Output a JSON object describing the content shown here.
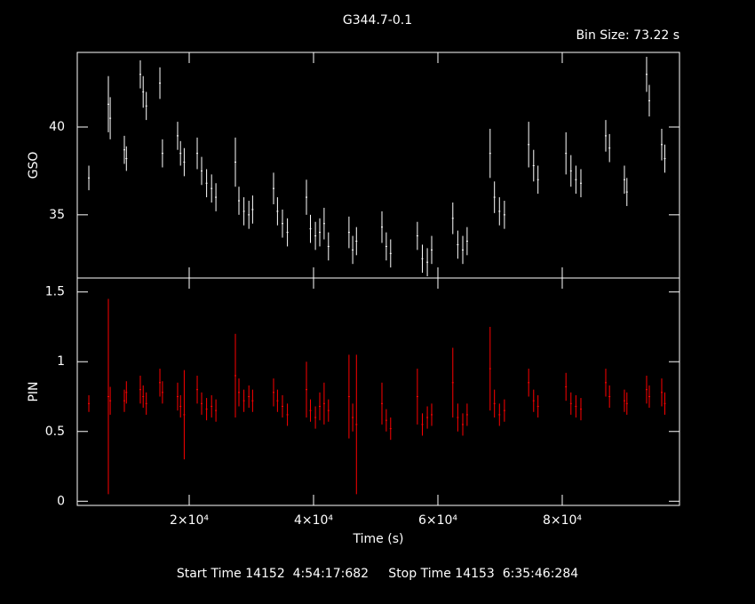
{
  "chart_data": [
    {
      "type": "errorbar",
      "title": "G344.7-0.1",
      "annotation": "Bin Size: 73.22 s",
      "ylabel": "GSO",
      "color": "#ffffff",
      "x": [
        3860,
        7000,
        7300,
        9570,
        9900,
        12140,
        12600,
        13100,
        15290,
        15700,
        18140,
        18600,
        19200,
        21290,
        22000,
        22800,
        23600,
        24300,
        27430,
        28000,
        28800,
        29600,
        30200,
        33570,
        34200,
        35000,
        35800,
        38860,
        39500,
        40300,
        41000,
        41700,
        42400,
        45700,
        46300,
        46900,
        51000,
        51700,
        52400,
        56700,
        57500,
        58300,
        59000,
        62400,
        63200,
        64000,
        64700,
        68400,
        69100,
        69900,
        70700,
        74600,
        75400,
        76100,
        80600,
        81400,
        82200,
        83000,
        87000,
        87600,
        90000,
        90400,
        93570,
        94000,
        96000,
        96500
      ],
      "values": [
        37.1,
        41.3,
        40.5,
        38.7,
        38.2,
        43.0,
        42.0,
        41.2,
        42.5,
        38.5,
        39.5,
        38.5,
        38.0,
        38.5,
        37.5,
        36.8,
        36.5,
        36.0,
        38.0,
        35.8,
        35.2,
        35.0,
        35.3,
        36.5,
        35.2,
        34.5,
        34.0,
        36.0,
        34.2,
        33.8,
        34.0,
        34.5,
        33.2,
        34.0,
        33.0,
        33.5,
        34.3,
        33.2,
        32.8,
        33.8,
        32.5,
        32.3,
        33.0,
        34.8,
        33.3,
        33.0,
        33.5,
        38.5,
        36.0,
        35.2,
        35.0,
        39.0,
        37.8,
        37.0,
        38.5,
        37.5,
        37.0,
        36.8,
        39.5,
        38.8,
        37.0,
        36.3,
        43.0,
        41.5,
        39.0,
        38.2
      ],
      "errors": [
        0.7,
        1.6,
        1.2,
        0.8,
        0.7,
        0.8,
        0.9,
        0.8,
        0.9,
        0.8,
        0.8,
        0.7,
        0.8,
        0.9,
        0.8,
        0.8,
        0.8,
        0.8,
        1.4,
        0.8,
        0.8,
        0.8,
        0.8,
        0.9,
        0.8,
        0.8,
        0.8,
        1.0,
        0.8,
        0.8,
        0.8,
        0.9,
        0.8,
        0.9,
        0.8,
        0.8,
        0.9,
        0.8,
        0.8,
        0.8,
        0.8,
        0.8,
        0.8,
        0.9,
        0.8,
        0.8,
        0.8,
        1.4,
        0.9,
        0.8,
        0.8,
        1.3,
        0.9,
        0.8,
        1.2,
        0.9,
        0.8,
        0.8,
        0.9,
        0.8,
        0.8,
        0.8,
        1.0,
        0.9,
        0.9,
        0.8
      ],
      "xlim": [
        2000,
        98860
      ],
      "ylim": [
        31.4,
        44.25
      ],
      "yticks": [
        35,
        40
      ]
    },
    {
      "type": "errorbar",
      "ylabel": "PIN",
      "xlabel": "Time (s)",
      "color": "#ff0000",
      "x": [
        3860,
        7000,
        7300,
        9570,
        9900,
        12140,
        12600,
        13100,
        15290,
        15700,
        18140,
        18600,
        19200,
        21290,
        22000,
        22800,
        23600,
        24300,
        27430,
        28000,
        28800,
        29600,
        30200,
        33570,
        34200,
        35000,
        35800,
        38860,
        39500,
        40300,
        41000,
        41700,
        42400,
        45700,
        46300,
        46900,
        51000,
        51700,
        52400,
        56700,
        57500,
        58300,
        59000,
        62400,
        63200,
        64000,
        64700,
        68400,
        69100,
        69900,
        70700,
        74600,
        75400,
        76100,
        80600,
        81400,
        82200,
        83000,
        87000,
        87600,
        90000,
        90400,
        93570,
        94000,
        96000,
        96500
      ],
      "values": [
        0.7,
        0.75,
        0.72,
        0.72,
        0.78,
        0.8,
        0.75,
        0.7,
        0.85,
        0.78,
        0.75,
        0.68,
        0.62,
        0.8,
        0.7,
        0.66,
        0.68,
        0.65,
        0.9,
        0.78,
        0.72,
        0.75,
        0.72,
        0.78,
        0.72,
        0.68,
        0.62,
        0.8,
        0.65,
        0.6,
        0.68,
        0.7,
        0.65,
        0.75,
        0.6,
        0.55,
        0.7,
        0.58,
        0.52,
        0.75,
        0.55,
        0.6,
        0.62,
        0.85,
        0.6,
        0.55,
        0.62,
        0.95,
        0.7,
        0.62,
        0.65,
        0.85,
        0.72,
        0.68,
        0.82,
        0.7,
        0.68,
        0.66,
        0.85,
        0.75,
        0.72,
        0.7,
        0.8,
        0.75,
        0.78,
        0.7
      ],
      "errors": [
        0.06,
        0.7,
        0.1,
        0.08,
        0.08,
        0.1,
        0.08,
        0.08,
        0.1,
        0.08,
        0.1,
        0.08,
        0.32,
        0.1,
        0.08,
        0.08,
        0.08,
        0.08,
        0.3,
        0.1,
        0.08,
        0.08,
        0.08,
        0.1,
        0.08,
        0.08,
        0.08,
        0.2,
        0.08,
        0.08,
        0.1,
        0.15,
        0.08,
        0.3,
        0.1,
        0.5,
        0.15,
        0.08,
        0.08,
        0.2,
        0.08,
        0.08,
        0.08,
        0.25,
        0.1,
        0.08,
        0.08,
        0.3,
        0.1,
        0.08,
        0.08,
        0.1,
        0.08,
        0.08,
        0.1,
        0.08,
        0.08,
        0.08,
        0.1,
        0.08,
        0.08,
        0.08,
        0.1,
        0.08,
        0.1,
        0.08
      ],
      "xlim": [
        2000,
        98860
      ],
      "ylim": [
        -0.03,
        1.6
      ],
      "yticks": [
        0,
        0.5,
        1,
        1.5
      ],
      "xticks": [
        {
          "value": 20000,
          "label": "2×10⁴"
        },
        {
          "value": 40000,
          "label": "4×10⁴"
        },
        {
          "value": 60000,
          "label": "6×10⁴"
        },
        {
          "value": 80000,
          "label": "8×10⁴"
        }
      ]
    }
  ],
  "footer": "Start Time 14152  4:54:17:682     Stop Time 14153  6:35:46:284"
}
